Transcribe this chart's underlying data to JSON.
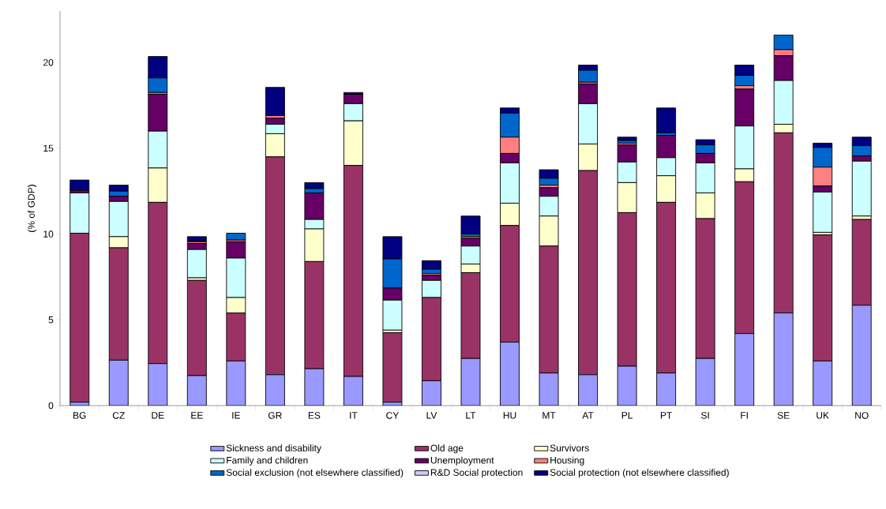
{
  "chart_data": {
    "type": "bar",
    "stacked": true,
    "ylabel": "(% of GDP)",
    "categories": [
      "BG",
      "CZ",
      "DE",
      "EE",
      "IE",
      "GR",
      "ES",
      "IT",
      "CY",
      "LV",
      "LT",
      "HU",
      "MT",
      "AT",
      "PL",
      "PT",
      "SI",
      "FI",
      "SE",
      "UK",
      "NO"
    ],
    "ylim": [
      0,
      23
    ],
    "yticks": [
      0,
      5,
      10,
      15,
      20
    ],
    "grid": false,
    "legend": "bottom",
    "series": [
      {
        "name": "Sickness and disability",
        "color": "#9999ff",
        "values": [
          0.2,
          2.65,
          2.45,
          1.75,
          2.6,
          1.8,
          2.15,
          1.7,
          0.2,
          1.45,
          2.75,
          3.7,
          1.9,
          1.8,
          2.3,
          1.9,
          2.75,
          4.2,
          5.4,
          2.6,
          5.85
        ]
      },
      {
        "name": "Old age",
        "color": "#993366",
        "values": [
          9.85,
          6.55,
          9.4,
          5.55,
          2.8,
          12.7,
          6.25,
          12.3,
          4.05,
          4.85,
          5.0,
          6.8,
          7.4,
          11.9,
          8.95,
          9.95,
          8.15,
          8.85,
          10.5,
          7.35,
          5.0
        ]
      },
      {
        "name": "Survivors",
        "color": "#ffffcc",
        "values": [
          0,
          0.65,
          2.0,
          0.15,
          0.9,
          1.35,
          1.9,
          2.6,
          0.15,
          0,
          0.5,
          1.3,
          1.75,
          1.55,
          1.75,
          1.55,
          1.5,
          0.75,
          0.5,
          0.15,
          0.2
        ]
      },
      {
        "name": "Family and children",
        "color": "#ccffff",
        "values": [
          2.35,
          2.05,
          2.15,
          1.65,
          2.3,
          0.55,
          0.55,
          1.0,
          1.75,
          1.0,
          1.05,
          2.35,
          1.15,
          2.35,
          1.2,
          1.05,
          1.75,
          2.5,
          2.55,
          2.35,
          3.2
        ]
      },
      {
        "name": "Unemployment",
        "color": "#660066",
        "values": [
          0.15,
          0.3,
          2.15,
          0.35,
          0.95,
          0.35,
          1.55,
          0.55,
          0.7,
          0.3,
          0.45,
          0.55,
          0.5,
          1.15,
          1.0,
          1.3,
          0.55,
          2.15,
          1.45,
          0.35,
          0.3
        ]
      },
      {
        "name": "Housing",
        "color": "#ff8080",
        "values": [
          0,
          null,
          0.1,
          0.1,
          0.1,
          0.15,
          null,
          0,
          null,
          0.1,
          0.1,
          0.95,
          0.15,
          0.1,
          0.1,
          null,
          null,
          0.2,
          0.35,
          1.1,
          0
        ]
      },
      {
        "name": "Social exclusion (not elsewhere classified)",
        "color": "#0066cc",
        "values": [
          0,
          0.3,
          0.85,
          0.05,
          0.4,
          0,
          0.25,
          0,
          1.7,
          0.25,
          0.15,
          1.4,
          0.4,
          0.7,
          0.15,
          0.15,
          0.5,
          0.6,
          0.85,
          1.15,
          0.6
        ]
      },
      {
        "name": "R&D Social protection",
        "color": "#ccccff",
        "values": [
          0,
          0,
          0,
          0,
          0,
          0,
          0,
          0,
          0,
          0,
          0,
          0,
          0,
          0,
          0,
          0,
          0,
          0,
          0,
          0,
          0
        ]
      },
      {
        "name": "Social protection (not elsewhere classified)",
        "color": "#000080",
        "values": [
          0.6,
          0.35,
          1.25,
          0.25,
          0,
          1.65,
          0.35,
          0.1,
          1.3,
          0.5,
          1.05,
          0.3,
          0.5,
          0.3,
          0.2,
          1.45,
          0.3,
          0.6,
          0,
          0.25,
          0.5
        ]
      }
    ]
  }
}
